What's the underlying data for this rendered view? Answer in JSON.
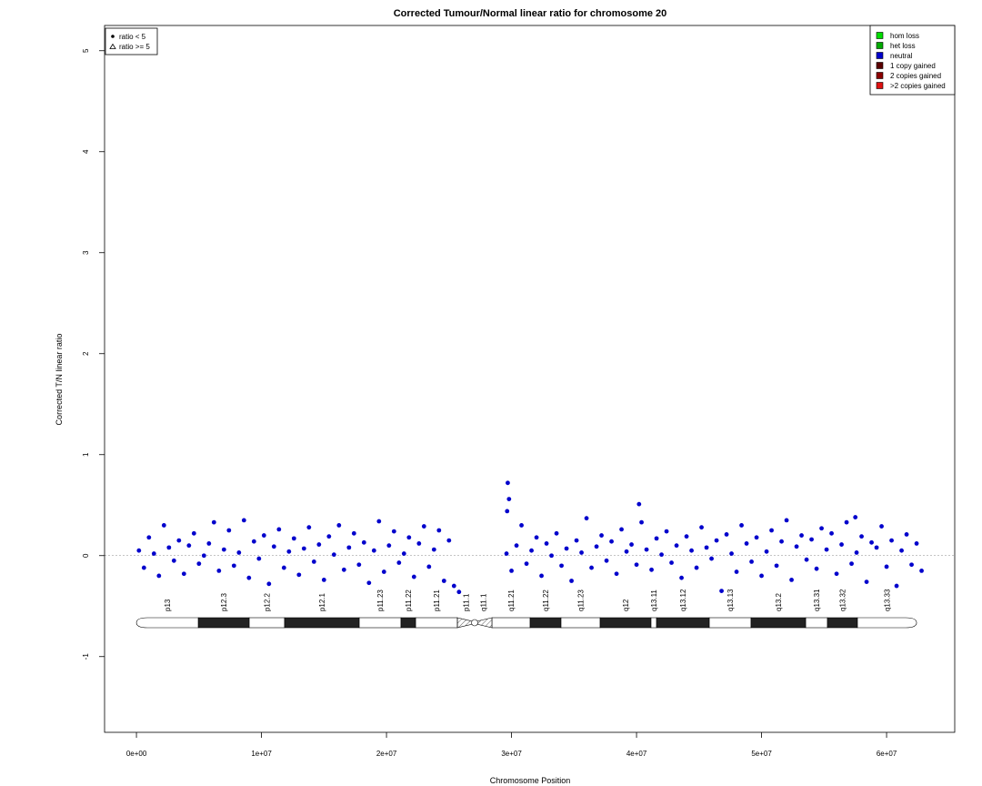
{
  "chart_data": {
    "type": "scatter",
    "title": "Corrected Tumour/Normal linear ratio for chromosome  20",
    "xlabel": "Chromosome Position",
    "ylabel": "Corrected T/N linear ratio",
    "xlim": [
      -2550000,
      65450000
    ],
    "ylim": [
      -1.75,
      5.25
    ],
    "xticks": [
      {
        "value": 0,
        "label": "0e+00"
      },
      {
        "value": 10000000,
        "label": "1e+07"
      },
      {
        "value": 20000000,
        "label": "2e+07"
      },
      {
        "value": 30000000,
        "label": "3e+07"
      },
      {
        "value": 40000000,
        "label": "4e+07"
      },
      {
        "value": 50000000,
        "label": "5e+07"
      },
      {
        "value": 60000000,
        "label": "6e+07"
      }
    ],
    "yticks": [
      -1,
      0,
      1,
      2,
      3,
      4,
      5
    ],
    "hline": 0,
    "shape_legend": [
      "ratio < 5",
      "ratio >= 5"
    ],
    "legend": [
      {
        "name": "hom loss",
        "color": "#00dd00"
      },
      {
        "name": "het loss",
        "color": "#00aa00"
      },
      {
        "name": "neutral",
        "color": "#0000cc"
      },
      {
        "name": "1 copy gained",
        "color": "#5a0000"
      },
      {
        "name": "2 copies gained",
        "color": "#8b0000"
      },
      {
        "name": ">2 copies gained",
        "color": "#dd1111"
      }
    ],
    "series": [
      {
        "name": "neutral",
        "color": "#0000cc",
        "x": [
          200000,
          600000,
          1000000,
          1400000,
          1800000,
          2200000,
          2600000,
          3000000,
          3400000,
          3800000,
          4200000,
          4600000,
          5000000,
          5400000,
          5800000,
          6200000,
          6600000,
          7000000,
          7400000,
          7800000,
          8200000,
          8600000,
          9000000,
          9400000,
          9800000,
          10200000,
          10600000,
          11000000,
          11400000,
          11800000,
          12200000,
          12600000,
          13000000,
          13400000,
          13800000,
          14200000,
          14600000,
          15000000,
          15400000,
          15800000,
          16200000,
          16600000,
          17000000,
          17400000,
          17800000,
          18200000,
          18600000,
          19000000,
          19400000,
          19800000,
          20200000,
          20600000,
          21000000,
          21400000,
          21800000,
          22200000,
          22600000,
          23000000,
          23400000,
          23800000,
          24200000,
          24600000,
          25000000,
          25400000,
          25800000,
          29600000,
          30000000,
          30400000,
          30800000,
          31200000,
          31600000,
          32000000,
          32400000,
          32800000,
          33200000,
          33600000,
          34000000,
          34400000,
          34800000,
          35200000,
          35600000,
          36000000,
          36400000,
          36800000,
          37200000,
          37600000,
          38000000,
          38400000,
          38800000,
          39200000,
          39600000,
          40000000,
          40400000,
          40800000,
          41200000,
          41600000,
          42000000,
          42400000,
          42800000,
          43200000,
          43600000,
          44000000,
          44400000,
          44800000,
          45200000,
          45600000,
          46000000,
          46400000,
          46800000,
          47200000,
          47600000,
          48000000,
          48400000,
          48800000,
          49200000,
          49600000,
          50000000,
          50400000,
          50800000,
          51200000,
          51600000,
          52000000,
          52400000,
          52800000,
          53200000,
          53600000,
          54000000,
          54400000,
          54800000,
          55200000,
          55600000,
          56000000,
          56400000,
          56800000,
          57200000,
          57600000,
          58000000,
          58400000,
          58800000,
          59200000,
          59600000,
          60000000,
          60400000,
          60800000,
          61200000,
          61600000,
          62000000,
          62400000,
          62800000,
          29700000,
          29800000,
          29650000,
          40200000,
          57500000
        ],
        "values": [
          0.05,
          -0.12,
          0.18,
          0.02,
          -0.2,
          0.3,
          0.08,
          -0.05,
          0.15,
          -0.18,
          0.1,
          0.22,
          -0.08,
          0.0,
          0.12,
          0.33,
          -0.15,
          0.06,
          0.25,
          -0.1,
          0.03,
          0.35,
          -0.22,
          0.14,
          -0.03,
          0.2,
          -0.28,
          0.09,
          0.26,
          -0.12,
          0.04,
          0.17,
          -0.19,
          0.07,
          0.28,
          -0.06,
          0.11,
          -0.24,
          0.19,
          0.01,
          0.3,
          -0.14,
          0.08,
          0.22,
          -0.09,
          0.13,
          -0.27,
          0.05,
          0.34,
          -0.16,
          0.1,
          0.24,
          -0.07,
          0.02,
          0.18,
          -0.21,
          0.12,
          0.29,
          -0.11,
          0.06,
          0.25,
          -0.25,
          0.15,
          -0.3,
          -0.36,
          0.02,
          -0.15,
          0.1,
          0.3,
          -0.08,
          0.05,
          0.18,
          -0.2,
          0.12,
          0.0,
          0.22,
          -0.1,
          0.07,
          -0.25,
          0.15,
          0.03,
          0.37,
          -0.12,
          0.09,
          0.2,
          -0.05,
          0.14,
          -0.18,
          0.26,
          0.04,
          0.11,
          -0.09,
          0.33,
          0.06,
          -0.14,
          0.17,
          0.01,
          0.24,
          -0.07,
          0.1,
          -0.22,
          0.19,
          0.05,
          -0.12,
          0.28,
          0.08,
          -0.03,
          0.15,
          -0.35,
          0.21,
          0.02,
          -0.16,
          0.3,
          0.12,
          -0.06,
          0.18,
          -0.2,
          0.04,
          0.25,
          -0.1,
          0.14,
          0.35,
          -0.24,
          0.09,
          0.2,
          -0.04,
          0.16,
          -0.13,
          0.27,
          0.06,
          0.22,
          -0.18,
          0.11,
          0.33,
          -0.08,
          0.03,
          0.19,
          -0.26,
          0.13,
          0.08,
          0.29,
          -0.11,
          0.15,
          -0.3,
          0.05,
          0.21,
          -0.09,
          0.12,
          -0.15,
          0.72,
          0.56,
          0.44,
          0.51,
          0.38
        ]
      }
    ],
    "ideogram": [
      {
        "label": "p13",
        "start": 0,
        "end": 4950000,
        "stain": "gneg"
      },
      {
        "label": "p12.3",
        "start": 4950000,
        "end": 9020000,
        "stain": "gpos"
      },
      {
        "label": "p12.2",
        "start": 9020000,
        "end": 11850000,
        "stain": "gneg"
      },
      {
        "label": "p12.1",
        "start": 11850000,
        "end": 17820000,
        "stain": "gpos"
      },
      {
        "label": "p11.23",
        "start": 17820000,
        "end": 21160000,
        "stain": "gneg"
      },
      {
        "label": "p11.22",
        "start": 21160000,
        "end": 22330000,
        "stain": "gpos"
      },
      {
        "label": "p11.21",
        "start": 22330000,
        "end": 25670000,
        "stain": "gneg"
      },
      {
        "label": "p11.1",
        "start": 25670000,
        "end": 27050000,
        "stain": "acen"
      },
      {
        "label": "q11.1",
        "start": 27050000,
        "end": 28440000,
        "stain": "acen"
      },
      {
        "label": "q11.21",
        "start": 28440000,
        "end": 31490000,
        "stain": "gneg"
      },
      {
        "label": "q11.22",
        "start": 31490000,
        "end": 33960000,
        "stain": "gpos"
      },
      {
        "label": "q11.23",
        "start": 33960000,
        "end": 37090000,
        "stain": "gneg"
      },
      {
        "label": "q12",
        "start": 37090000,
        "end": 41160000,
        "stain": "gpos"
      },
      {
        "label": "q13.11",
        "start": 41160000,
        "end": 41600000,
        "stain": "gneg"
      },
      {
        "label": "q13.12",
        "start": 41600000,
        "end": 45820000,
        "stain": "gpos"
      },
      {
        "label": "q13.13",
        "start": 45820000,
        "end": 49160000,
        "stain": "gneg"
      },
      {
        "label": "q13.2",
        "start": 49160000,
        "end": 53530000,
        "stain": "gpos"
      },
      {
        "label": "q13.31",
        "start": 53530000,
        "end": 55270000,
        "stain": "gneg"
      },
      {
        "label": "q13.32",
        "start": 55270000,
        "end": 57670000,
        "stain": "gpos"
      },
      {
        "label": "q13.33",
        "start": 57670000,
        "end": 62400000,
        "stain": "gneg"
      }
    ]
  }
}
